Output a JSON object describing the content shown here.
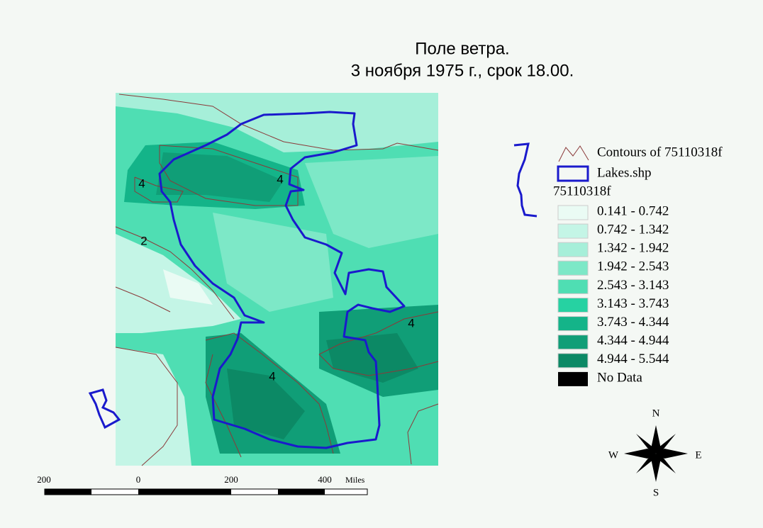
{
  "title": [
    "Поле ветра.",
    "3 ноября 1975 г., срок 18.00."
  ],
  "legend": {
    "contours": "Contours of 75110318f",
    "lakes": "Lakes.shp",
    "grid_name": "75110318f",
    "classes": [
      {
        "label": "0.141 - 0.742",
        "color": "#eafbf4"
      },
      {
        "label": "0.742 - 1.342",
        "color": "#c4f5e6"
      },
      {
        "label": "1.342 - 1.942",
        "color": "#a6efd9"
      },
      {
        "label": "1.942 - 2.543",
        "color": "#7de8c7"
      },
      {
        "label": "2.543 - 3.143",
        "color": "#4fdeb3"
      },
      {
        "label": "3.143 - 3.743",
        "color": "#26d2a2"
      },
      {
        "label": "3.743 - 4.344",
        "color": "#14b489"
      },
      {
        "label": "4.344 - 4.944",
        "color": "#109e77"
      },
      {
        "label": "4.944 - 5.544",
        "color": "#0c8965"
      }
    ],
    "no_data": {
      "label": "No Data",
      "color": "#000000"
    }
  },
  "contour_labels": [
    "4",
    "4",
    "2",
    "4",
    "4"
  ],
  "scale_bar": {
    "labels": [
      "200",
      "0",
      "200",
      "400"
    ],
    "unit": "Miles"
  },
  "compass": {
    "n": "N",
    "s": "S",
    "e": "E",
    "w": "W"
  }
}
